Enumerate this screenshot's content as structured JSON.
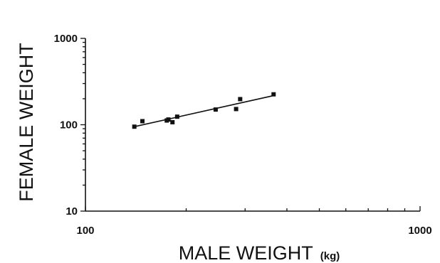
{
  "chart_data": {
    "type": "scatter",
    "title": "",
    "xlabel": "MALE WEIGHT",
    "xlabel_unit": "(kg)",
    "ylabel": "FEMALE WEIGHT",
    "xscale": "log",
    "yscale": "log",
    "xlim": [
      100,
      1000
    ],
    "ylim": [
      10,
      1000
    ],
    "x_tick_labels": [
      "100",
      "1000"
    ],
    "y_tick_labels": [
      "10",
      "100",
      "1000"
    ],
    "grid": false,
    "legend": "none",
    "points": [
      {
        "x": 140,
        "y": 95
      },
      {
        "x": 148,
        "y": 110
      },
      {
        "x": 175,
        "y": 112
      },
      {
        "x": 177,
        "y": 115
      },
      {
        "x": 182,
        "y": 107
      },
      {
        "x": 188,
        "y": 124
      },
      {
        "x": 245,
        "y": 150
      },
      {
        "x": 282,
        "y": 152
      },
      {
        "x": 290,
        "y": 198
      },
      {
        "x": 365,
        "y": 225
      }
    ],
    "fit_line": {
      "x": [
        140,
        362
      ],
      "y": [
        95,
        216
      ]
    }
  }
}
